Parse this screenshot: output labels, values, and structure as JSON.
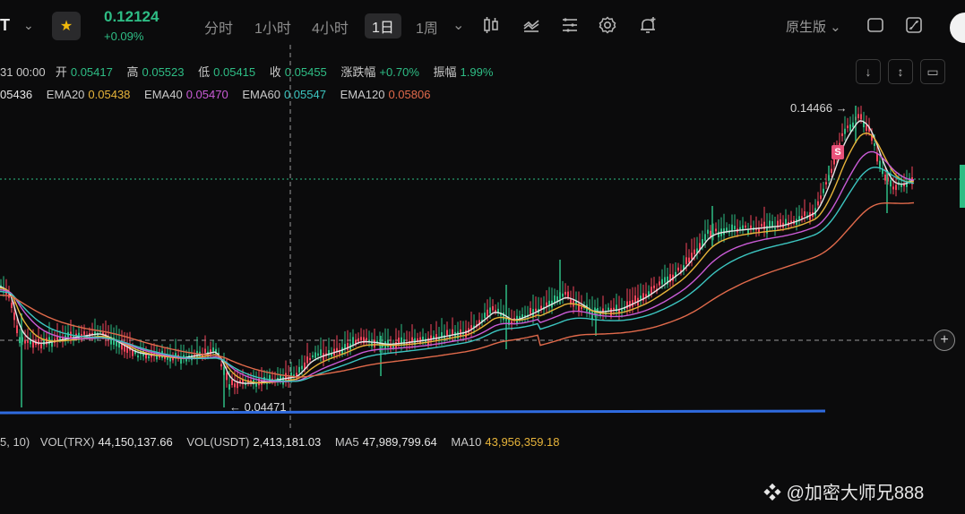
{
  "header": {
    "symbol_tail": "T",
    "price": "0.12124",
    "change_pct": "+0.09%",
    "timeframes": [
      "分时",
      "1小时",
      "4小时",
      "1日",
      "1周"
    ],
    "active_timeframe": "1日",
    "view_mode": "原生版"
  },
  "ohlc": {
    "date_tail": "31 00:00",
    "open_label": "开",
    "open": "0.05417",
    "high_label": "高",
    "high": "0.05523",
    "low_label": "低",
    "low": "0.05415",
    "close_label": "收",
    "close": "0.05455",
    "change_label": "涨跌幅",
    "change": "+0.70%",
    "amplitude_label": "振幅",
    "amplitude": "1.99%"
  },
  "ema": {
    "first_value_tail": "05436",
    "ema20_label": "EMA20",
    "ema20": "0.05438",
    "ema40_label": "EMA40",
    "ema40": "0.05470",
    "ema60_label": "EMA60",
    "ema60": "0.05547",
    "ema120_label": "EMA120",
    "ema120": "0.05806"
  },
  "annotations": {
    "high_mark": "0.14466 →",
    "low_mark": "← 0.04471",
    "signal_badge": "S"
  },
  "volume": {
    "params_tail": "5, 10)",
    "vol_trx_label": "VOL(TRX)",
    "vol_trx": "44,150,137.66",
    "vol_usdt_label": "VOL(USDT)",
    "vol_usdt": "2,413,181.03",
    "ma5_label": "MA5",
    "ma5": "47,989,799.64",
    "ma10_label": "MA10",
    "ma10": "43,956,359.18"
  },
  "watermark": "@加密大师兄888",
  "colors": {
    "up": "#2ebd85",
    "down": "#f6465d",
    "ema10": "#e6e6e6",
    "ema20": "#e7b43a",
    "ema40": "#c95bd6",
    "ema60": "#3cc5c0",
    "ema120": "#e16a4b",
    "support_line": "#2f6be0"
  }
}
